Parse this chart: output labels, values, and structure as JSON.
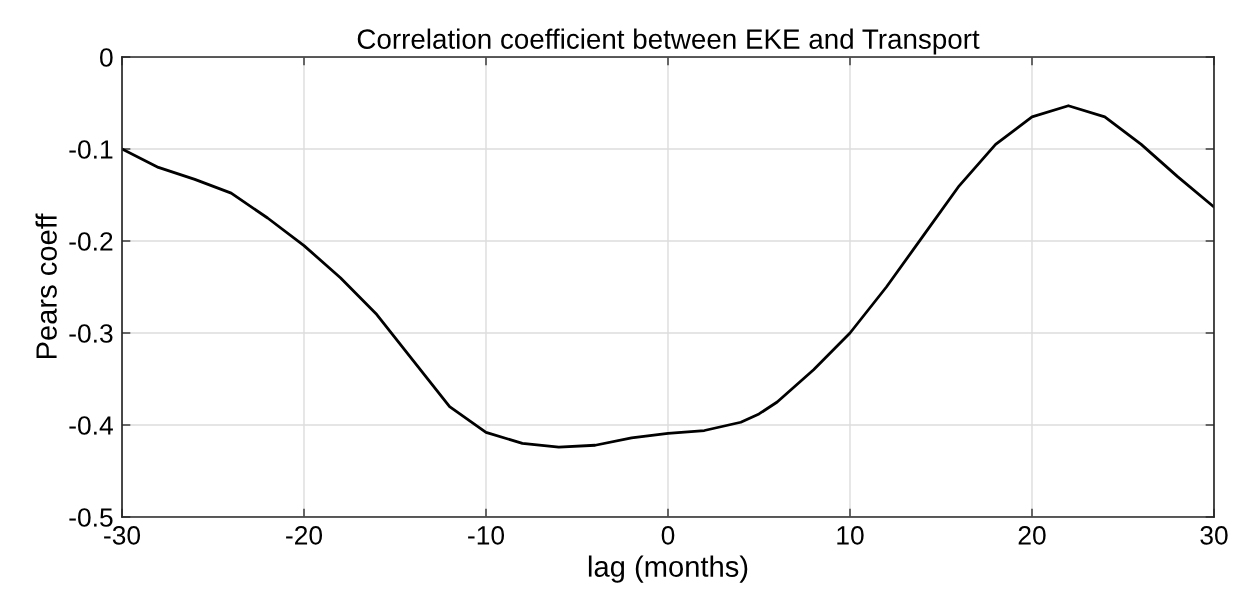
{
  "chart_data": {
    "type": "line",
    "title": "Correlation coefficient between EKE and Transport",
    "xlabel": "lag (months)",
    "ylabel": "Pears coeff",
    "x": [
      -30,
      -28,
      -26,
      -24,
      -22,
      -20,
      -18,
      -16,
      -14,
      -12,
      -10,
      -8,
      -6,
      -4,
      -2,
      0,
      2,
      4,
      5,
      6,
      8,
      10,
      12,
      14,
      16,
      18,
      20,
      22,
      24,
      26,
      28,
      30
    ],
    "series": [
      {
        "color": "#000000",
        "values": [
          -0.1,
          -0.12,
          -0.133,
          -0.148,
          -0.175,
          -0.205,
          -0.24,
          -0.28,
          -0.33,
          -0.38,
          -0.408,
          -0.42,
          -0.424,
          -0.422,
          -0.414,
          -0.409,
          -0.406,
          -0.397,
          -0.388,
          -0.375,
          -0.34,
          -0.3,
          -0.25,
          -0.195,
          -0.14,
          -0.095,
          -0.065,
          -0.053,
          -0.065,
          -0.095,
          -0.13,
          -0.163
        ]
      }
    ],
    "xlim": [
      -30,
      30
    ],
    "ylim": [
      -0.5,
      0
    ],
    "xticks": [
      -30,
      -20,
      -10,
      0,
      10,
      20,
      30
    ],
    "yticks": [
      -0.5,
      -0.4,
      -0.3,
      -0.2,
      -0.1,
      0
    ],
    "grid": true,
    "marker": "none",
    "line_style": "solid"
  }
}
